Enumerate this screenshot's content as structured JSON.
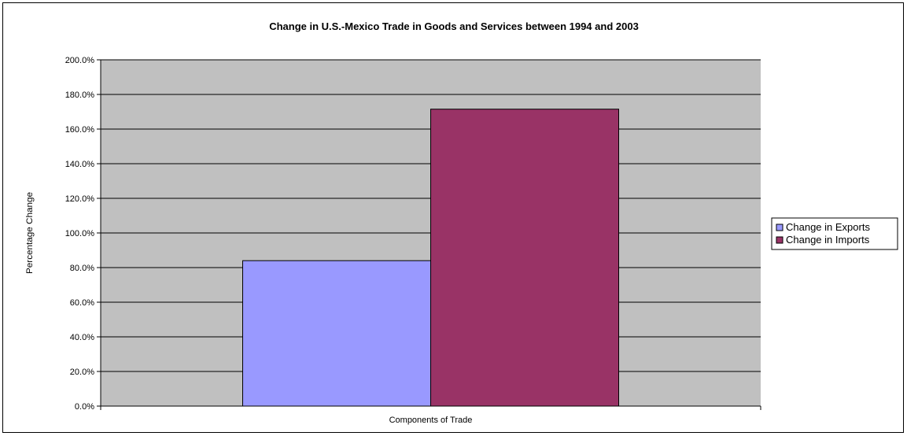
{
  "chart_data": {
    "type": "bar",
    "title": "Change in U.S.-Mexico Trade in Goods and Services between 1994 and 2003",
    "xlabel": "Components of Trade",
    "ylabel": "Percentage Change",
    "categories": [
      ""
    ],
    "series": [
      {
        "name": "Change in Exports",
        "values": [
          84.0
        ],
        "color": "#9999ff"
      },
      {
        "name": "Change in Imports",
        "values": [
          171.5
        ],
        "color": "#993366"
      }
    ],
    "ylim": [
      0,
      200
    ],
    "ytick_step": 20,
    "ytick_suffix": "%",
    "ytick_decimals": 1,
    "grid": true,
    "legend_position": "right",
    "plot_background": "#c0c0c0"
  }
}
